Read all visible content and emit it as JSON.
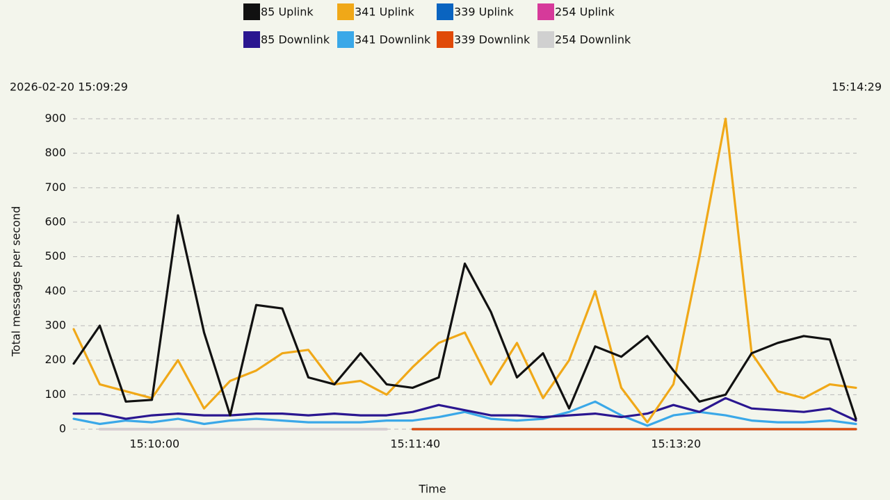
{
  "chart_data": {
    "type": "line",
    "x_label": "Time",
    "y_label": "Total messages per second",
    "x": [
      "15:09:29",
      "15:09:39",
      "15:09:49",
      "15:09:59",
      "15:10:09",
      "15:10:19",
      "15:10:29",
      "15:10:39",
      "15:10:49",
      "15:10:59",
      "15:11:09",
      "15:11:19",
      "15:11:29",
      "15:11:39",
      "15:11:49",
      "15:11:59",
      "15:12:09",
      "15:12:19",
      "15:12:29",
      "15:12:39",
      "15:12:49",
      "15:12:59",
      "15:13:09",
      "15:13:19",
      "15:13:29",
      "15:13:39",
      "15:13:49",
      "15:13:59",
      "15:14:09",
      "15:14:19",
      "15:14:29"
    ],
    "xlim": [
      "2026-02-20 15:09:29",
      "15:14:29"
    ],
    "xticks": [
      "15:10:00",
      "15:11:40",
      "15:13:20"
    ],
    "ylim": [
      0,
      950
    ],
    "yticks": [
      0,
      100,
      200,
      300,
      400,
      500,
      600,
      700,
      800,
      900
    ],
    "grid": true,
    "series": [
      {
        "name": "85 Uplink",
        "color": "#111111",
        "values": [
          190,
          300,
          80,
          85,
          620,
          280,
          40,
          360,
          350,
          150,
          130,
          220,
          130,
          120,
          150,
          480,
          340,
          150,
          220,
          60,
          240,
          210,
          270,
          170,
          80,
          100,
          220,
          250,
          270,
          260,
          30
        ]
      },
      {
        "name": "341 Uplink",
        "color": "#f0a818",
        "values": [
          290,
          130,
          110,
          90,
          200,
          60,
          140,
          170,
          220,
          230,
          130,
          140,
          100,
          180,
          250,
          280,
          130,
          250,
          90,
          200,
          400,
          120,
          20,
          130,
          500,
          900,
          220,
          110,
          90,
          130,
          120
        ]
      },
      {
        "name": "339 Uplink",
        "color": "#0a64c0",
        "values": [
          null,
          null,
          null,
          null,
          null,
          null,
          null,
          null,
          null,
          null,
          null,
          null,
          null,
          0,
          0,
          0,
          0,
          0,
          0,
          0,
          0,
          0,
          0,
          0,
          0,
          0,
          0,
          0,
          0,
          0,
          0
        ]
      },
      {
        "name": "254 Uplink",
        "color": "#d63a9a",
        "values": [
          null,
          0,
          0,
          0,
          0,
          0,
          0,
          0,
          0,
          0,
          0,
          0,
          0,
          null,
          null,
          null,
          null,
          null,
          null,
          null,
          null,
          null,
          null,
          null,
          null,
          null,
          null,
          null,
          null,
          null,
          null
        ]
      },
      {
        "name": "85 Downlink",
        "color": "#2a1690",
        "values": [
          45,
          45,
          30,
          40,
          45,
          40,
          40,
          45,
          45,
          40,
          45,
          40,
          40,
          50,
          70,
          55,
          40,
          40,
          35,
          40,
          45,
          35,
          45,
          70,
          50,
          90,
          60,
          55,
          50,
          60,
          25
        ]
      },
      {
        "name": "341 Downlink",
        "color": "#3aa8e8",
        "values": [
          30,
          15,
          25,
          20,
          30,
          15,
          25,
          30,
          25,
          20,
          20,
          20,
          25,
          25,
          35,
          50,
          30,
          25,
          30,
          50,
          80,
          40,
          10,
          40,
          50,
          40,
          25,
          20,
          20,
          25,
          15
        ]
      },
      {
        "name": "339 Downlink",
        "color": "#e04a08",
        "values": [
          null,
          null,
          null,
          null,
          null,
          null,
          null,
          null,
          null,
          null,
          null,
          null,
          null,
          0,
          0,
          0,
          0,
          0,
          0,
          0,
          0,
          0,
          0,
          0,
          0,
          0,
          0,
          0,
          0,
          0,
          0
        ]
      },
      {
        "name": "254 Downlink",
        "color": "#d0d0d0",
        "values": [
          null,
          0,
          0,
          0,
          0,
          0,
          0,
          0,
          0,
          0,
          0,
          0,
          0,
          null,
          null,
          null,
          null,
          null,
          null,
          null,
          null,
          null,
          null,
          null,
          null,
          null,
          null,
          null,
          null,
          null,
          null
        ]
      }
    ]
  }
}
